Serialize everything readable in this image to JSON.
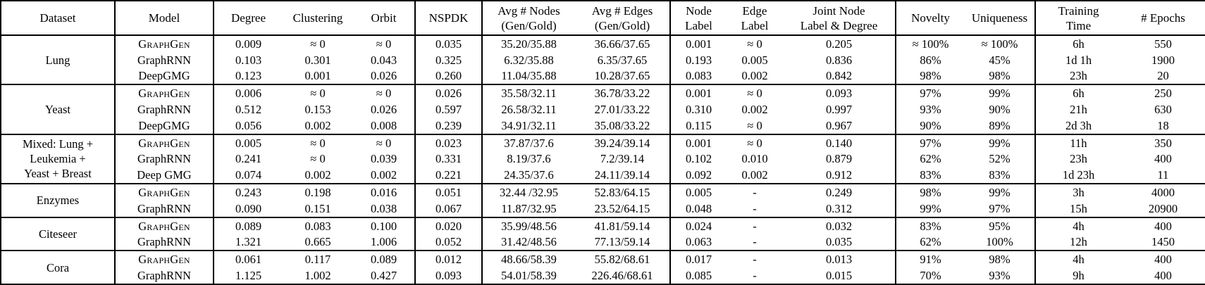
{
  "colors": {
    "text": "#000000",
    "background": "#ffffff",
    "border": "#000000"
  },
  "table": {
    "type": "table",
    "columns": [
      {
        "id": "dataset",
        "label": "Dataset"
      },
      {
        "id": "model",
        "label": "Model"
      },
      {
        "id": "degree",
        "label": "Degree"
      },
      {
        "id": "clustering",
        "label": "Clustering"
      },
      {
        "id": "orbit",
        "label": "Orbit"
      },
      {
        "id": "nspdk",
        "label": "NSPDK"
      },
      {
        "id": "avg_nodes",
        "label": "Avg # Nodes\n(Gen/Gold)"
      },
      {
        "id": "avg_edges",
        "label": "Avg # Edges\n(Gen/Gold)"
      },
      {
        "id": "node_label",
        "label": "Node\nLabel"
      },
      {
        "id": "edge_label",
        "label": "Edge\nLabel"
      },
      {
        "id": "joint",
        "label": "Joint Node\nLabel & Degree"
      },
      {
        "id": "novelty",
        "label": "Novelty"
      },
      {
        "id": "uniqueness",
        "label": "Uniqueness"
      },
      {
        "id": "training_time",
        "label": "Training\nTime"
      },
      {
        "id": "epochs",
        "label": "# Epochs"
      }
    ],
    "groups": [
      {
        "dataset": "Lung",
        "rows": [
          {
            "model": "GraphGen",
            "smallcaps": true,
            "values": [
              {
                "t": "0.009",
                "b": true
              },
              {
                "t": "≈ 0",
                "b": true
              },
              {
                "t": "≈ 0",
                "b": true
              },
              {
                "t": "0.035",
                "b": true
              },
              {
                "t": "35.20/35.88",
                "b": true
              },
              {
                "t": "36.66/37.65",
                "b": true
              },
              {
                "t": "0.001",
                "b": true
              },
              {
                "t": "≈ 0",
                "b": true
              },
              {
                "t": "0.205",
                "b": true
              },
              {
                "t": "≈ 100%",
                "b": true
              },
              {
                "t": "≈ 100%",
                "b": true
              },
              {
                "t": "6h",
                "b": true
              },
              {
                "t": "550"
              }
            ]
          },
          {
            "model": "GraphRNN",
            "values": [
              {
                "t": "0.103"
              },
              {
                "t": "0.301"
              },
              {
                "t": "0.043"
              },
              {
                "t": "0.325"
              },
              {
                "t": "6.32/35.88"
              },
              {
                "t": "6.35/37.65"
              },
              {
                "t": "0.193"
              },
              {
                "t": "0.005"
              },
              {
                "t": "0.836"
              },
              {
                "t": "86%"
              },
              {
                "t": "45%"
              },
              {
                "t": "1d 1h"
              },
              {
                "t": "1900"
              }
            ]
          },
          {
            "model": "DeepGMG",
            "values": [
              {
                "t": "0.123"
              },
              {
                "t": "0.001"
              },
              {
                "t": "0.026"
              },
              {
                "t": "0.260"
              },
              {
                "t": "11.04/35.88"
              },
              {
                "t": "10.28/37.65"
              },
              {
                "t": "0.083"
              },
              {
                "t": "0.002"
              },
              {
                "t": "0.842"
              },
              {
                "t": "98%"
              },
              {
                "t": "98%"
              },
              {
                "t": "23h"
              },
              {
                "t": "20",
                "b": true
              }
            ]
          }
        ]
      },
      {
        "dataset": "Yeast",
        "rows": [
          {
            "model": "GraphGen",
            "smallcaps": true,
            "values": [
              {
                "t": "0.006",
                "b": true
              },
              {
                "t": "≈ 0",
                "b": true
              },
              {
                "t": "≈ 0",
                "b": true
              },
              {
                "t": "0.026",
                "b": true
              },
              {
                "t": "35.58/32.11",
                "b": true
              },
              {
                "t": "36.78/33.22",
                "b": true
              },
              {
                "t": "0.001",
                "b": true
              },
              {
                "t": "≈ 0",
                "b": true
              },
              {
                "t": "0.093",
                "b": true
              },
              {
                "t": "97%",
                "b": true
              },
              {
                "t": "99%",
                "b": true
              },
              {
                "t": "6h",
                "b": true
              },
              {
                "t": "250"
              }
            ]
          },
          {
            "model": "GraphRNN",
            "values": [
              {
                "t": "0.512"
              },
              {
                "t": "0.153"
              },
              {
                "t": "0.026"
              },
              {
                "t": "0.597"
              },
              {
                "t": "26.58/32.11"
              },
              {
                "t": "27.01/33.22"
              },
              {
                "t": "0.310"
              },
              {
                "t": "0.002"
              },
              {
                "t": "0.997"
              },
              {
                "t": "93%"
              },
              {
                "t": "90%"
              },
              {
                "t": "21h"
              },
              {
                "t": "630"
              }
            ]
          },
          {
            "model": "DeepGMG",
            "values": [
              {
                "t": "0.056"
              },
              {
                "t": "0.002"
              },
              {
                "t": "0.008"
              },
              {
                "t": "0.239"
              },
              {
                "t": "34.91/32.11"
              },
              {
                "t": "35.08/33.22"
              },
              {
                "t": "0.115"
              },
              {
                "t": "≈ 0",
                "b": true
              },
              {
                "t": "0.967"
              },
              {
                "t": "90%"
              },
              {
                "t": "89%"
              },
              {
                "t": "2d 3h"
              },
              {
                "t": "18",
                "b": true
              }
            ]
          }
        ]
      },
      {
        "dataset": "Mixed: Lung +\nLeukemia +\nYeast + Breast",
        "rows": [
          {
            "model": "GraphGen",
            "smallcaps": true,
            "values": [
              {
                "t": "0.005",
                "b": true
              },
              {
                "t": "≈ 0",
                "b": true
              },
              {
                "t": "≈ 0",
                "b": true
              },
              {
                "t": "0.023",
                "b": true
              },
              {
                "t": "37.87/37.6",
                "b": true
              },
              {
                "t": "39.24/39.14",
                "b": true
              },
              {
                "t": "0.001",
                "b": true
              },
              {
                "t": "≈ 0",
                "b": true
              },
              {
                "t": "0.140",
                "b": true
              },
              {
                "t": "97%",
                "b": true
              },
              {
                "t": "99%",
                "b": true
              },
              {
                "t": "11h",
                "b": true
              },
              {
                "t": "350"
              }
            ]
          },
          {
            "model": "GraphRNN",
            "values": [
              {
                "t": "0.241"
              },
              {
                "t": "≈ 0",
                "b": true
              },
              {
                "t": "0.039"
              },
              {
                "t": "0.331"
              },
              {
                "t": "8.19/37.6"
              },
              {
                "t": "7.2/39.14"
              },
              {
                "t": "0.102"
              },
              {
                "t": "0.010"
              },
              {
                "t": "0.879"
              },
              {
                "t": "62%"
              },
              {
                "t": "52%"
              },
              {
                "t": "23h"
              },
              {
                "t": "400"
              }
            ]
          },
          {
            "model": "Deep GMG",
            "values": [
              {
                "t": "0.074"
              },
              {
                "t": "0.002"
              },
              {
                "t": "0.002"
              },
              {
                "t": "0.221"
              },
              {
                "t": "24.35/37.6"
              },
              {
                "t": "24.11/39.14"
              },
              {
                "t": "0.092"
              },
              {
                "t": "0.002"
              },
              {
                "t": "0.912"
              },
              {
                "t": "83%"
              },
              {
                "t": "83%"
              },
              {
                "t": "1d 23h"
              },
              {
                "t": "11",
                "b": true
              }
            ]
          }
        ]
      },
      {
        "dataset": "Enzymes",
        "rows": [
          {
            "model": "GraphGen",
            "smallcaps": true,
            "values": [
              {
                "t": "0.243"
              },
              {
                "t": "0.198"
              },
              {
                "t": "0.016",
                "b": true
              },
              {
                "t": "0.051",
                "b": true
              },
              {
                "t": "32.44 /32.95",
                "b": true
              },
              {
                "t": "52.83/64.15",
                "b": true
              },
              {
                "t": "0.005",
                "b": true
              },
              {
                "t": "-"
              },
              {
                "t": "0.249",
                "b": true
              },
              {
                "t": "98%"
              },
              {
                "t": "99%",
                "b": true
              },
              {
                "t": "3h",
                "b": true
              },
              {
                "t": "4000",
                "b": true
              }
            ]
          },
          {
            "model": "GraphRNN",
            "values": [
              {
                "t": "0.090",
                "b": true
              },
              {
                "t": "0.151",
                "b": true
              },
              {
                "t": "0.038"
              },
              {
                "t": "0.067"
              },
              {
                "t": "11.87/32.95"
              },
              {
                "t": "23.52/64.15"
              },
              {
                "t": "0.048"
              },
              {
                "t": "-"
              },
              {
                "t": "0.312"
              },
              {
                "t": "99%",
                "b": true
              },
              {
                "t": "97%"
              },
              {
                "t": "15h"
              },
              {
                "t": "20900"
              }
            ]
          }
        ]
      },
      {
        "dataset": "Citeseer",
        "rows": [
          {
            "model": "GraphGen",
            "smallcaps": true,
            "values": [
              {
                "t": "0.089",
                "b": true
              },
              {
                "t": "0.083",
                "b": true
              },
              {
                "t": "0.100",
                "b": true
              },
              {
                "t": "0.020",
                "b": true
              },
              {
                "t": "35.99/48.56",
                "b": true
              },
              {
                "t": "41.81/59.14",
                "b": true
              },
              {
                "t": "0.024",
                "b": true
              },
              {
                "t": "-"
              },
              {
                "t": "0.032",
                "b": true
              },
              {
                "t": "83%",
                "b": true
              },
              {
                "t": "95%"
              },
              {
                "t": "4h",
                "b": true
              },
              {
                "t": "400",
                "b": true
              }
            ]
          },
          {
            "model": "GraphRNN",
            "values": [
              {
                "t": "1.321"
              },
              {
                "t": "0.665"
              },
              {
                "t": "1.006"
              },
              {
                "t": "0.052"
              },
              {
                "t": "31.42/48.56"
              },
              {
                "t": "77.13/59.14"
              },
              {
                "t": "0.063"
              },
              {
                "t": "-"
              },
              {
                "t": "0.035"
              },
              {
                "t": "62%"
              },
              {
                "t": "100%",
                "b": true
              },
              {
                "t": "12h"
              },
              {
                "t": "1450"
              }
            ]
          }
        ]
      },
      {
        "dataset": "Cora",
        "rows": [
          {
            "model": "GraphGen",
            "smallcaps": true,
            "values": [
              {
                "t": "0.061",
                "b": true
              },
              {
                "t": "0.117",
                "b": true
              },
              {
                "t": "0.089",
                "b": true
              },
              {
                "t": "0.012",
                "b": true
              },
              {
                "t": "48.66/58.39"
              },
              {
                "t": "55.82/68.61",
                "b": true
              },
              {
                "t": "0.017",
                "b": true
              },
              {
                "t": "-"
              },
              {
                "t": "0.013",
                "b": true
              },
              {
                "t": "91%",
                "b": true
              },
              {
                "t": "98%",
                "b": true
              },
              {
                "t": "4h",
                "b": true
              },
              {
                "t": "400",
                "b": true
              }
            ]
          },
          {
            "model": "GraphRNN",
            "values": [
              {
                "t": "1.125"
              },
              {
                "t": "1.002"
              },
              {
                "t": "0.427"
              },
              {
                "t": "0.093"
              },
              {
                "t": "54.01/58.39",
                "b": true
              },
              {
                "t": "226.46/68.61"
              },
              {
                "t": "0.085"
              },
              {
                "t": "-"
              },
              {
                "t": "0.015"
              },
              {
                "t": "70%"
              },
              {
                "t": "93%"
              },
              {
                "t": "9h"
              },
              {
                "t": "400",
                "b": true
              }
            ]
          }
        ]
      }
    ]
  }
}
